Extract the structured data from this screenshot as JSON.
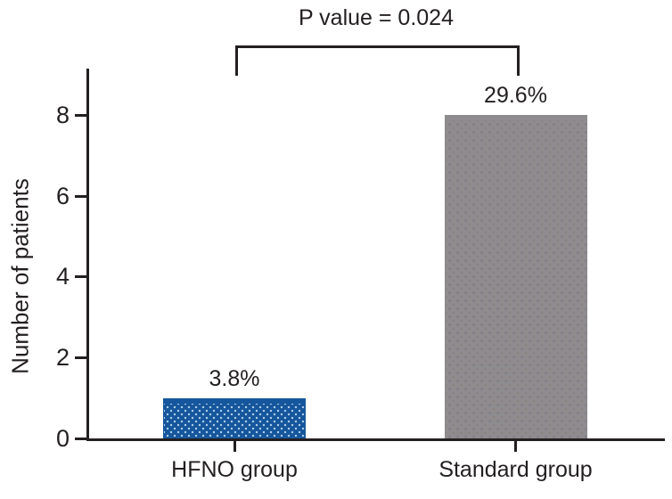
{
  "figure": {
    "background": "#ffffff"
  },
  "colors": {
    "axis": "#231f20",
    "text": "#231f20",
    "hfno_bar": "#15569c",
    "standard_bar": "#8e8c8f"
  },
  "chart_data": {
    "type": "bar",
    "categories": [
      "HFNO group",
      "Standard group"
    ],
    "values": [
      1,
      8
    ],
    "bar_labels": [
      "3.8%",
      "29.6%"
    ],
    "bar_colors": [
      "#15569c",
      "#8e8c8f"
    ],
    "title": "",
    "xlabel": "",
    "ylabel": "Number of patients",
    "yticks": [
      0,
      2,
      4,
      6,
      8
    ],
    "ylim": [
      0,
      9.2
    ],
    "grid": false,
    "legend": false,
    "annotation": "P value = 0.024",
    "annotation_note": "significance bracket spanning both bars"
  }
}
